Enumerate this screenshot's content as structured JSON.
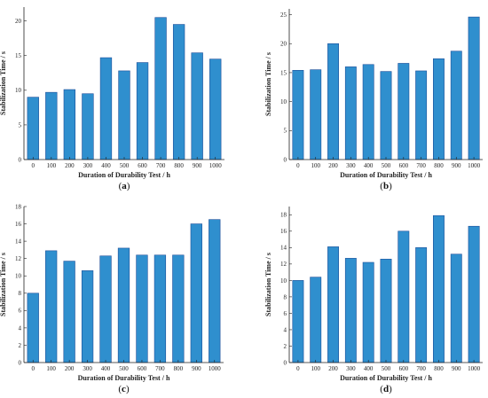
{
  "chart_data": [
    {
      "id": "a",
      "panel_label": "a",
      "type": "bar",
      "categories": [
        "0",
        "100",
        "200",
        "300",
        "400",
        "500",
        "600",
        "700",
        "800",
        "900",
        "1000"
      ],
      "values": [
        9.0,
        9.7,
        10.1,
        9.5,
        14.7,
        12.8,
        14.0,
        20.5,
        19.5,
        15.4,
        14.5
      ],
      "ylim": [
        0,
        22
      ],
      "yticks": [
        0,
        5,
        10,
        15,
        20
      ],
      "xlabel": "Duration of Durability Test / h",
      "ylabel": "Stabilization Time / s",
      "bar_color": "#2f8fce",
      "edge_color": "#1d4f9a"
    },
    {
      "id": "b",
      "panel_label": "b",
      "type": "bar",
      "categories": [
        "0",
        "100",
        "200",
        "300",
        "400",
        "500",
        "600",
        "700",
        "800",
        "900",
        "1000"
      ],
      "values": [
        15.4,
        15.5,
        20.0,
        16.0,
        16.4,
        15.2,
        16.6,
        15.3,
        17.4,
        18.7,
        24.6
      ],
      "ylim": [
        0,
        26
      ],
      "yticks": [
        0,
        5,
        10,
        15,
        20,
        25
      ],
      "xlabel": "Duration of Durability Test / h",
      "ylabel": "Stabilization Time / s",
      "bar_color": "#2f8fce",
      "edge_color": "#1d4f9a"
    },
    {
      "id": "c",
      "panel_label": "c",
      "type": "bar",
      "categories": [
        "0",
        "100",
        "200",
        "300",
        "400",
        "500",
        "600",
        "700",
        "800",
        "900",
        "1000"
      ],
      "values": [
        8.0,
        12.9,
        11.7,
        10.6,
        12.3,
        13.2,
        12.4,
        12.4,
        12.4,
        16.0,
        16.5
      ],
      "ylim": [
        0,
        18
      ],
      "yticks": [
        0,
        2,
        4,
        6,
        8,
        10,
        12,
        14,
        16,
        18
      ],
      "xlabel": "Duration of Durability Test / h",
      "ylabel": "Stabilization Time / s",
      "bar_color": "#2f8fce",
      "edge_color": "#1d4f9a"
    },
    {
      "id": "d",
      "panel_label": "d",
      "type": "bar",
      "categories": [
        "0",
        "100",
        "200",
        "300",
        "400",
        "500",
        "600",
        "700",
        "800",
        "900",
        "1000"
      ],
      "values": [
        10.0,
        10.4,
        14.1,
        12.7,
        12.2,
        12.6,
        16.0,
        14.0,
        17.9,
        13.2,
        16.6
      ],
      "ylim": [
        0,
        19
      ],
      "yticks": [
        0,
        2,
        4,
        6,
        8,
        10,
        12,
        14,
        16,
        18
      ],
      "xlabel": "Duration of Durability Test / h",
      "ylabel": "Stabilization Time / s",
      "bar_color": "#2f8fce",
      "edge_color": "#1d4f9a"
    }
  ]
}
